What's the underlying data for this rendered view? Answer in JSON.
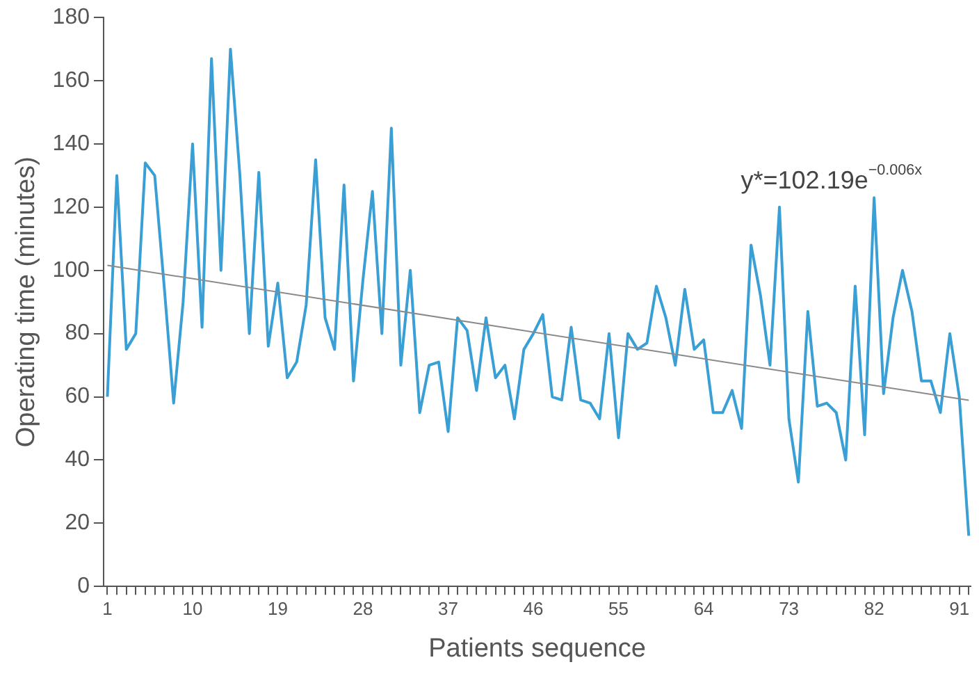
{
  "chart_data": {
    "type": "line",
    "xlabel": "Patients sequence",
    "ylabel": "Operating time (minutes)",
    "annotations": [
      "y*=102.19e$^{−0.006x}$"
    ],
    "xlim": [
      0.6,
      92.2
    ],
    "ylim": [
      0,
      180
    ],
    "yticks": [
      0,
      20,
      40,
      60,
      80,
      100,
      120,
      140,
      160,
      180
    ],
    "xticks": [
      1,
      {
        "value": 2,
        "label": null
      },
      {
        "value": 3,
        "label": null
      },
      {
        "value": 4,
        "label": null
      },
      {
        "value": 5,
        "label": null
      },
      {
        "value": 6,
        "label": null
      },
      {
        "value": 7,
        "label": null
      },
      {
        "value": 8,
        "label": null
      },
      {
        "value": 9,
        "label": null
      },
      10,
      {
        "value": 11,
        "label": null
      },
      {
        "value": 12,
        "label": null
      },
      {
        "value": 13,
        "label": null
      },
      {
        "value": 14,
        "label": null
      },
      {
        "value": 15,
        "label": null
      },
      {
        "value": 16,
        "label": null
      },
      {
        "value": 17,
        "label": null
      },
      {
        "value": 18,
        "label": null
      },
      19,
      {
        "value": 20,
        "label": null
      },
      {
        "value": 21,
        "label": null
      },
      {
        "value": 22,
        "label": null
      },
      {
        "value": 23,
        "label": null
      },
      {
        "value": 24,
        "label": null
      },
      {
        "value": 25,
        "label": null
      },
      {
        "value": 26,
        "label": null
      },
      {
        "value": 27,
        "label": null
      },
      28,
      {
        "value": 29,
        "label": null
      },
      {
        "value": 30,
        "label": null
      },
      {
        "value": 31,
        "label": null
      },
      {
        "value": 32,
        "label": null
      },
      {
        "value": 33,
        "label": null
      },
      {
        "value": 34,
        "label": null
      },
      {
        "value": 35,
        "label": null
      },
      {
        "value": 36,
        "label": null
      },
      37,
      {
        "value": 38,
        "label": null
      },
      {
        "value": 39,
        "label": null
      },
      {
        "value": 40,
        "label": null
      },
      {
        "value": 41,
        "label": null
      },
      {
        "value": 42,
        "label": null
      },
      {
        "value": 43,
        "label": null
      },
      {
        "value": 44,
        "label": null
      },
      {
        "value": 45,
        "label": null
      },
      46,
      {
        "value": 47,
        "label": null
      },
      {
        "value": 48,
        "label": null
      },
      {
        "value": 49,
        "label": null
      },
      {
        "value": 50,
        "label": null
      },
      {
        "value": 51,
        "label": null
      },
      {
        "value": 52,
        "label": null
      },
      {
        "value": 53,
        "label": null
      },
      {
        "value": 54,
        "label": null
      },
      55,
      {
        "value": 56,
        "label": null
      },
      {
        "value": 57,
        "label": null
      },
      {
        "value": 58,
        "label": null
      },
      {
        "value": 59,
        "label": null
      },
      {
        "value": 60,
        "label": null
      },
      {
        "value": 61,
        "label": null
      },
      {
        "value": 62,
        "label": null
      },
      {
        "value": 63,
        "label": null
      },
      64,
      {
        "value": 65,
        "label": null
      },
      {
        "value": 66,
        "label": null
      },
      {
        "value": 67,
        "label": null
      },
      {
        "value": 68,
        "label": null
      },
      {
        "value": 69,
        "label": null
      },
      {
        "value": 70,
        "label": null
      },
      {
        "value": 71,
        "label": null
      },
      {
        "value": 72,
        "label": null
      },
      73,
      {
        "value": 74,
        "label": null
      },
      {
        "value": 75,
        "label": null
      },
      {
        "value": 76,
        "label": null
      },
      {
        "value": 77,
        "label": null
      },
      {
        "value": 78,
        "label": null
      },
      {
        "value": 79,
        "label": null
      },
      {
        "value": 80,
        "label": null
      },
      {
        "value": 81,
        "label": null
      },
      82,
      {
        "value": 83,
        "label": null
      },
      {
        "value": 84,
        "label": null
      },
      {
        "value": 85,
        "label": null
      },
      {
        "value": 86,
        "label": null
      },
      {
        "value": 87,
        "label": null
      },
      {
        "value": 88,
        "label": null
      },
      {
        "value": 89,
        "label": null
      },
      {
        "value": 90,
        "label": null
      },
      91,
      {
        "value": 92,
        "label": null
      }
    ],
    "grid": false,
    "marker": "none",
    "series": [
      {
        "color": "#3a9fd5",
        "x": [
          1,
          2,
          3,
          4,
          5,
          6,
          7,
          8,
          9,
          10,
          11,
          12,
          13,
          14,
          15,
          16,
          17,
          18,
          19,
          20,
          21,
          22,
          23,
          24,
          25,
          26,
          27,
          28,
          29,
          30,
          31,
          32,
          33,
          34,
          35,
          36,
          37,
          38,
          39,
          40,
          41,
          42,
          43,
          44,
          45,
          46,
          47,
          48,
          49,
          50,
          51,
          52,
          53,
          54,
          55,
          56,
          57,
          58,
          59,
          60,
          61,
          62,
          63,
          64,
          65,
          66,
          67,
          68,
          69,
          70,
          71,
          72,
          73,
          74,
          75,
          76,
          77,
          78,
          79,
          80,
          81,
          82,
          83,
          84,
          85,
          86,
          87,
          88,
          89,
          90,
          91,
          92
        ],
        "values": [
          60,
          130,
          75,
          80,
          134,
          130,
          95,
          58,
          90,
          140,
          82,
          167,
          100,
          170,
          130,
          80,
          131,
          76,
          96,
          66,
          71,
          89,
          135,
          85,
          75,
          127,
          65,
          97,
          125,
          80,
          145,
          70,
          100,
          55,
          70,
          71,
          49,
          85,
          81,
          62,
          85,
          66,
          70,
          53,
          75,
          80,
          86,
          60,
          59,
          82,
          59,
          58,
          53,
          80,
          47,
          80,
          75,
          77,
          95,
          85,
          70,
          94,
          75,
          78,
          55,
          55,
          62,
          50,
          108,
          92,
          70,
          120,
          53,
          33,
          87,
          57,
          58,
          55,
          40,
          95,
          48,
          123,
          61,
          85,
          100,
          87,
          65,
          65,
          55,
          80,
          60,
          16
        ]
      },
      {
        "type": "line",
        "color": "#8a8a8a",
        "x": [
          1,
          92
        ],
        "values": [
          101.6,
          58.9
        ]
      }
    ]
  }
}
